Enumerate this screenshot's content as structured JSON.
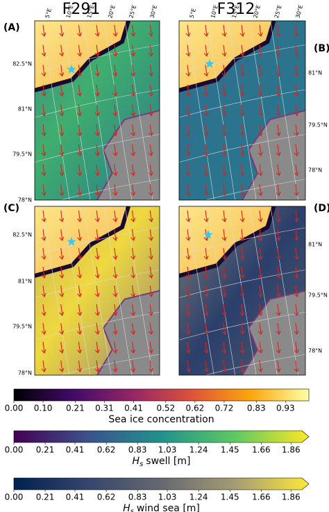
{
  "columns": [
    "F291",
    "F312"
  ],
  "panels": [
    {
      "label": "(A)",
      "lat_labels": [
        "82.5°N",
        "81°N",
        "79.5°N",
        "78°N"
      ],
      "lon_labels": [
        "5°E",
        "10°E",
        "15°E",
        "20°E",
        "25°E",
        "30°E"
      ]
    },
    {
      "label": "(B)",
      "lat_labels": [
        "81°N",
        "79.5°N",
        "78°N"
      ],
      "lon_labels": [
        "5°E",
        "10°E",
        "15°E",
        "20°E",
        "25°E",
        "30°E"
      ]
    },
    {
      "label": "(C)",
      "lat_labels": [
        "82.5°N",
        "81°N",
        "79.5°N",
        "78°N"
      ]
    },
    {
      "label": "(D)",
      "lat_labels": [
        "81°N",
        "79.5°N",
        "78°N"
      ]
    }
  ],
  "colorbars": [
    {
      "label": {
        "text": "Sea ice concentration"
      },
      "lim": [
        0,
        1.01
      ],
      "ticks": [
        {
          "value": 0,
          "label": "0.00"
        },
        {
          "value": 0.1,
          "label": "0.10"
        },
        {
          "value": 0.21,
          "label": "0.21"
        },
        {
          "value": 0.31,
          "label": "0.31"
        },
        {
          "value": 0.41,
          "label": "0.41"
        },
        {
          "value": 0.52,
          "label": "0.52"
        },
        {
          "value": 0.62,
          "label": "0.62"
        },
        {
          "value": 0.72,
          "label": "0.72"
        },
        {
          "value": 0.83,
          "label": "0.83"
        },
        {
          "value": 0.93,
          "label": "0.93"
        }
      ]
    },
    {
      "label": {
        "symbol": "H",
        "subscript": "s",
        "text": "swell [m]"
      },
      "lim": [
        0,
        1.98
      ],
      "ticks": [
        {
          "value": 0,
          "label": "0.00"
        },
        {
          "value": 0.21,
          "label": "0.21"
        },
        {
          "value": 0.41,
          "label": "0.41"
        },
        {
          "value": 0.62,
          "label": "0.62"
        },
        {
          "value": 0.83,
          "label": "0.83"
        },
        {
          "value": 1.03,
          "label": "1.03"
        },
        {
          "value": 1.24,
          "label": "1.24"
        },
        {
          "value": 1.45,
          "label": "1.45"
        },
        {
          "value": 1.66,
          "label": "1.66"
        },
        {
          "value": 1.86,
          "label": "1.86"
        }
      ]
    },
    {
      "label": {
        "symbol": "H",
        "subscript": "s",
        "text": "wind sea [m]"
      },
      "lim": [
        0,
        1.98
      ],
      "ticks": [
        {
          "value": 0,
          "label": "0.00"
        },
        {
          "value": 0.21,
          "label": "0.21"
        },
        {
          "value": 0.41,
          "label": "0.41"
        },
        {
          "value": 0.62,
          "label": "0.62"
        },
        {
          "value": 0.83,
          "label": "0.83"
        },
        {
          "value": 1.03,
          "label": "1.03"
        },
        {
          "value": 1.24,
          "label": "1.24"
        },
        {
          "value": 1.45,
          "label": "1.45"
        },
        {
          "value": 1.66,
          "label": "1.66"
        },
        {
          "value": 1.86,
          "label": "1.86"
        }
      ]
    }
  ]
}
